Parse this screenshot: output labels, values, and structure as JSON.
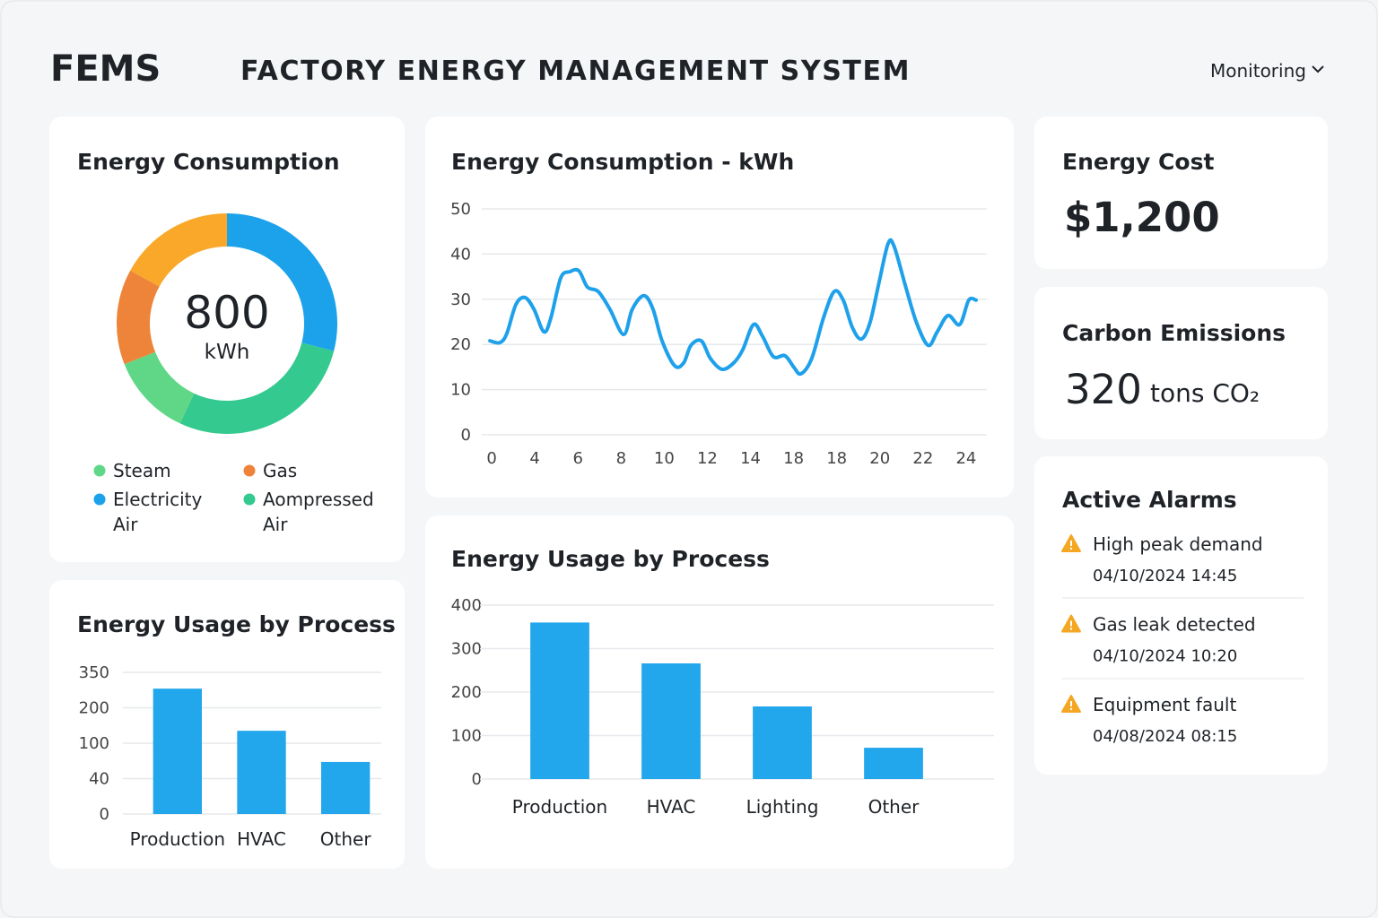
{
  "header": {
    "logo": "FEMS",
    "title": "FACTORY ENERGY MANAGEMENT SYSTEM",
    "menu": "Monitoring"
  },
  "chart_data": [
    {
      "type": "pie",
      "title": "Energy Consumption",
      "center_value": 800,
      "center_unit": "kWh",
      "categories": [
        "Electricity Air",
        "Aompressed Air",
        "Steam",
        "Gas",
        null
      ],
      "values": [
        29,
        28,
        12,
        14,
        17
      ],
      "colors": [
        "#1ca2eb",
        "#33c98f",
        "#5fd787",
        "#ee843a",
        "#f9a82a"
      ]
    },
    {
      "type": "line",
      "title": "Energy Consumption - kWh",
      "color": "#1ea1ea",
      "x": [
        -0.04,
        0.19,
        0.35,
        0.56,
        0.77,
        0.98,
        1.21,
        1.37,
        1.6,
        1.81,
        2.02,
        2.22,
        2.47,
        2.74,
        3.06,
        3.26,
        3.53,
        3.74,
        3.95,
        4.24,
        4.45,
        4.62,
        4.86,
        5.07,
        5.34,
        5.61,
        5.82,
        6.07,
        6.28,
        6.53,
        6.8,
        7.01,
        7.17,
        7.42,
        7.69,
        7.94,
        8.15,
        8.36,
        8.57,
        8.77,
        8.98,
        9.19,
        9.33,
        9.6,
        9.85,
        10.12,
        10.33,
        10.58,
        10.85,
        11.06,
        11.23
      ],
      "values": [
        20.8,
        20.4,
        22.4,
        28.8,
        30.4,
        27.8,
        22.8,
        25.8,
        34.7,
        36.1,
        36.3,
        32.7,
        31.7,
        27.8,
        22.2,
        27.8,
        30.8,
        27.8,
        20.8,
        15.3,
        15.9,
        19.8,
        20.8,
        16.9,
        14.5,
        15.9,
        18.8,
        24.4,
        21.8,
        17.3,
        17.5,
        14.9,
        13.5,
        16.9,
        25.8,
        31.7,
        29.8,
        23.8,
        21.2,
        24.8,
        33.7,
        42.3,
        41.7,
        32.7,
        24.8,
        19.8,
        22.8,
        26.4,
        24.4,
        29.8,
        29.8
      ],
      "xlim": [
        -0.23,
        11.48
      ],
      "xticks": [
        0,
        {
          "value": 1,
          "label": "4"
        },
        {
          "value": 2,
          "label": "6"
        },
        {
          "value": 3,
          "label": "8"
        },
        {
          "value": 4,
          "label": "10"
        },
        {
          "value": 5,
          "label": "12"
        },
        {
          "value": 6,
          "label": "14"
        },
        {
          "value": 7,
          "label": "18"
        },
        {
          "value": 8,
          "label": "18"
        },
        {
          "value": 9,
          "label": "20"
        },
        {
          "value": 10,
          "label": "22"
        },
        {
          "value": 11,
          "label": "24"
        }
      ],
      "ylim": [
        0,
        50
      ],
      "yticks": [
        0,
        10,
        20,
        30,
        40,
        50
      ],
      "grid": true
    },
    {
      "type": "bar",
      "title": "Energy Usage by Process",
      "color": "#22a6ec",
      "categories": [
        "Production",
        "HVAC",
        "Other"
      ],
      "values": [
        3.54,
        2.35,
        1.47
      ],
      "ylim": [
        0,
        4
      ],
      "yticks": [
        0,
        {
          "value": 1,
          "label": "40"
        },
        {
          "value": 2,
          "label": "100"
        },
        {
          "value": 3,
          "label": "200"
        },
        {
          "value": 4,
          "label": "350"
        }
      ],
      "grid": true
    },
    {
      "type": "bar",
      "title": "Energy Usage by Process",
      "color": "#22a6ec",
      "categories": [
        "Production",
        "HVAC",
        "Lighting",
        "Other"
      ],
      "values": [
        360,
        266,
        167,
        72
      ],
      "ylim": [
        0,
        400
      ],
      "yticks": [
        0,
        100,
        200,
        300,
        400
      ],
      "grid": true
    }
  ],
  "energy_cost": {
    "title": "Energy Cost",
    "value": "$1,200"
  },
  "carbon": {
    "title": "Carbon Emissions",
    "value": 320,
    "unit": "tons CO₂"
  },
  "alarms": {
    "title": "Active Alarms",
    "items": [
      {
        "text": "High peak demand",
        "time": "04/10/2024 14:45"
      },
      {
        "text": "Gas leak detected",
        "time": "04/10/2024 10:20"
      },
      {
        "text": "Equipment fault",
        "time": "04/08/2024 08:15"
      }
    ]
  }
}
